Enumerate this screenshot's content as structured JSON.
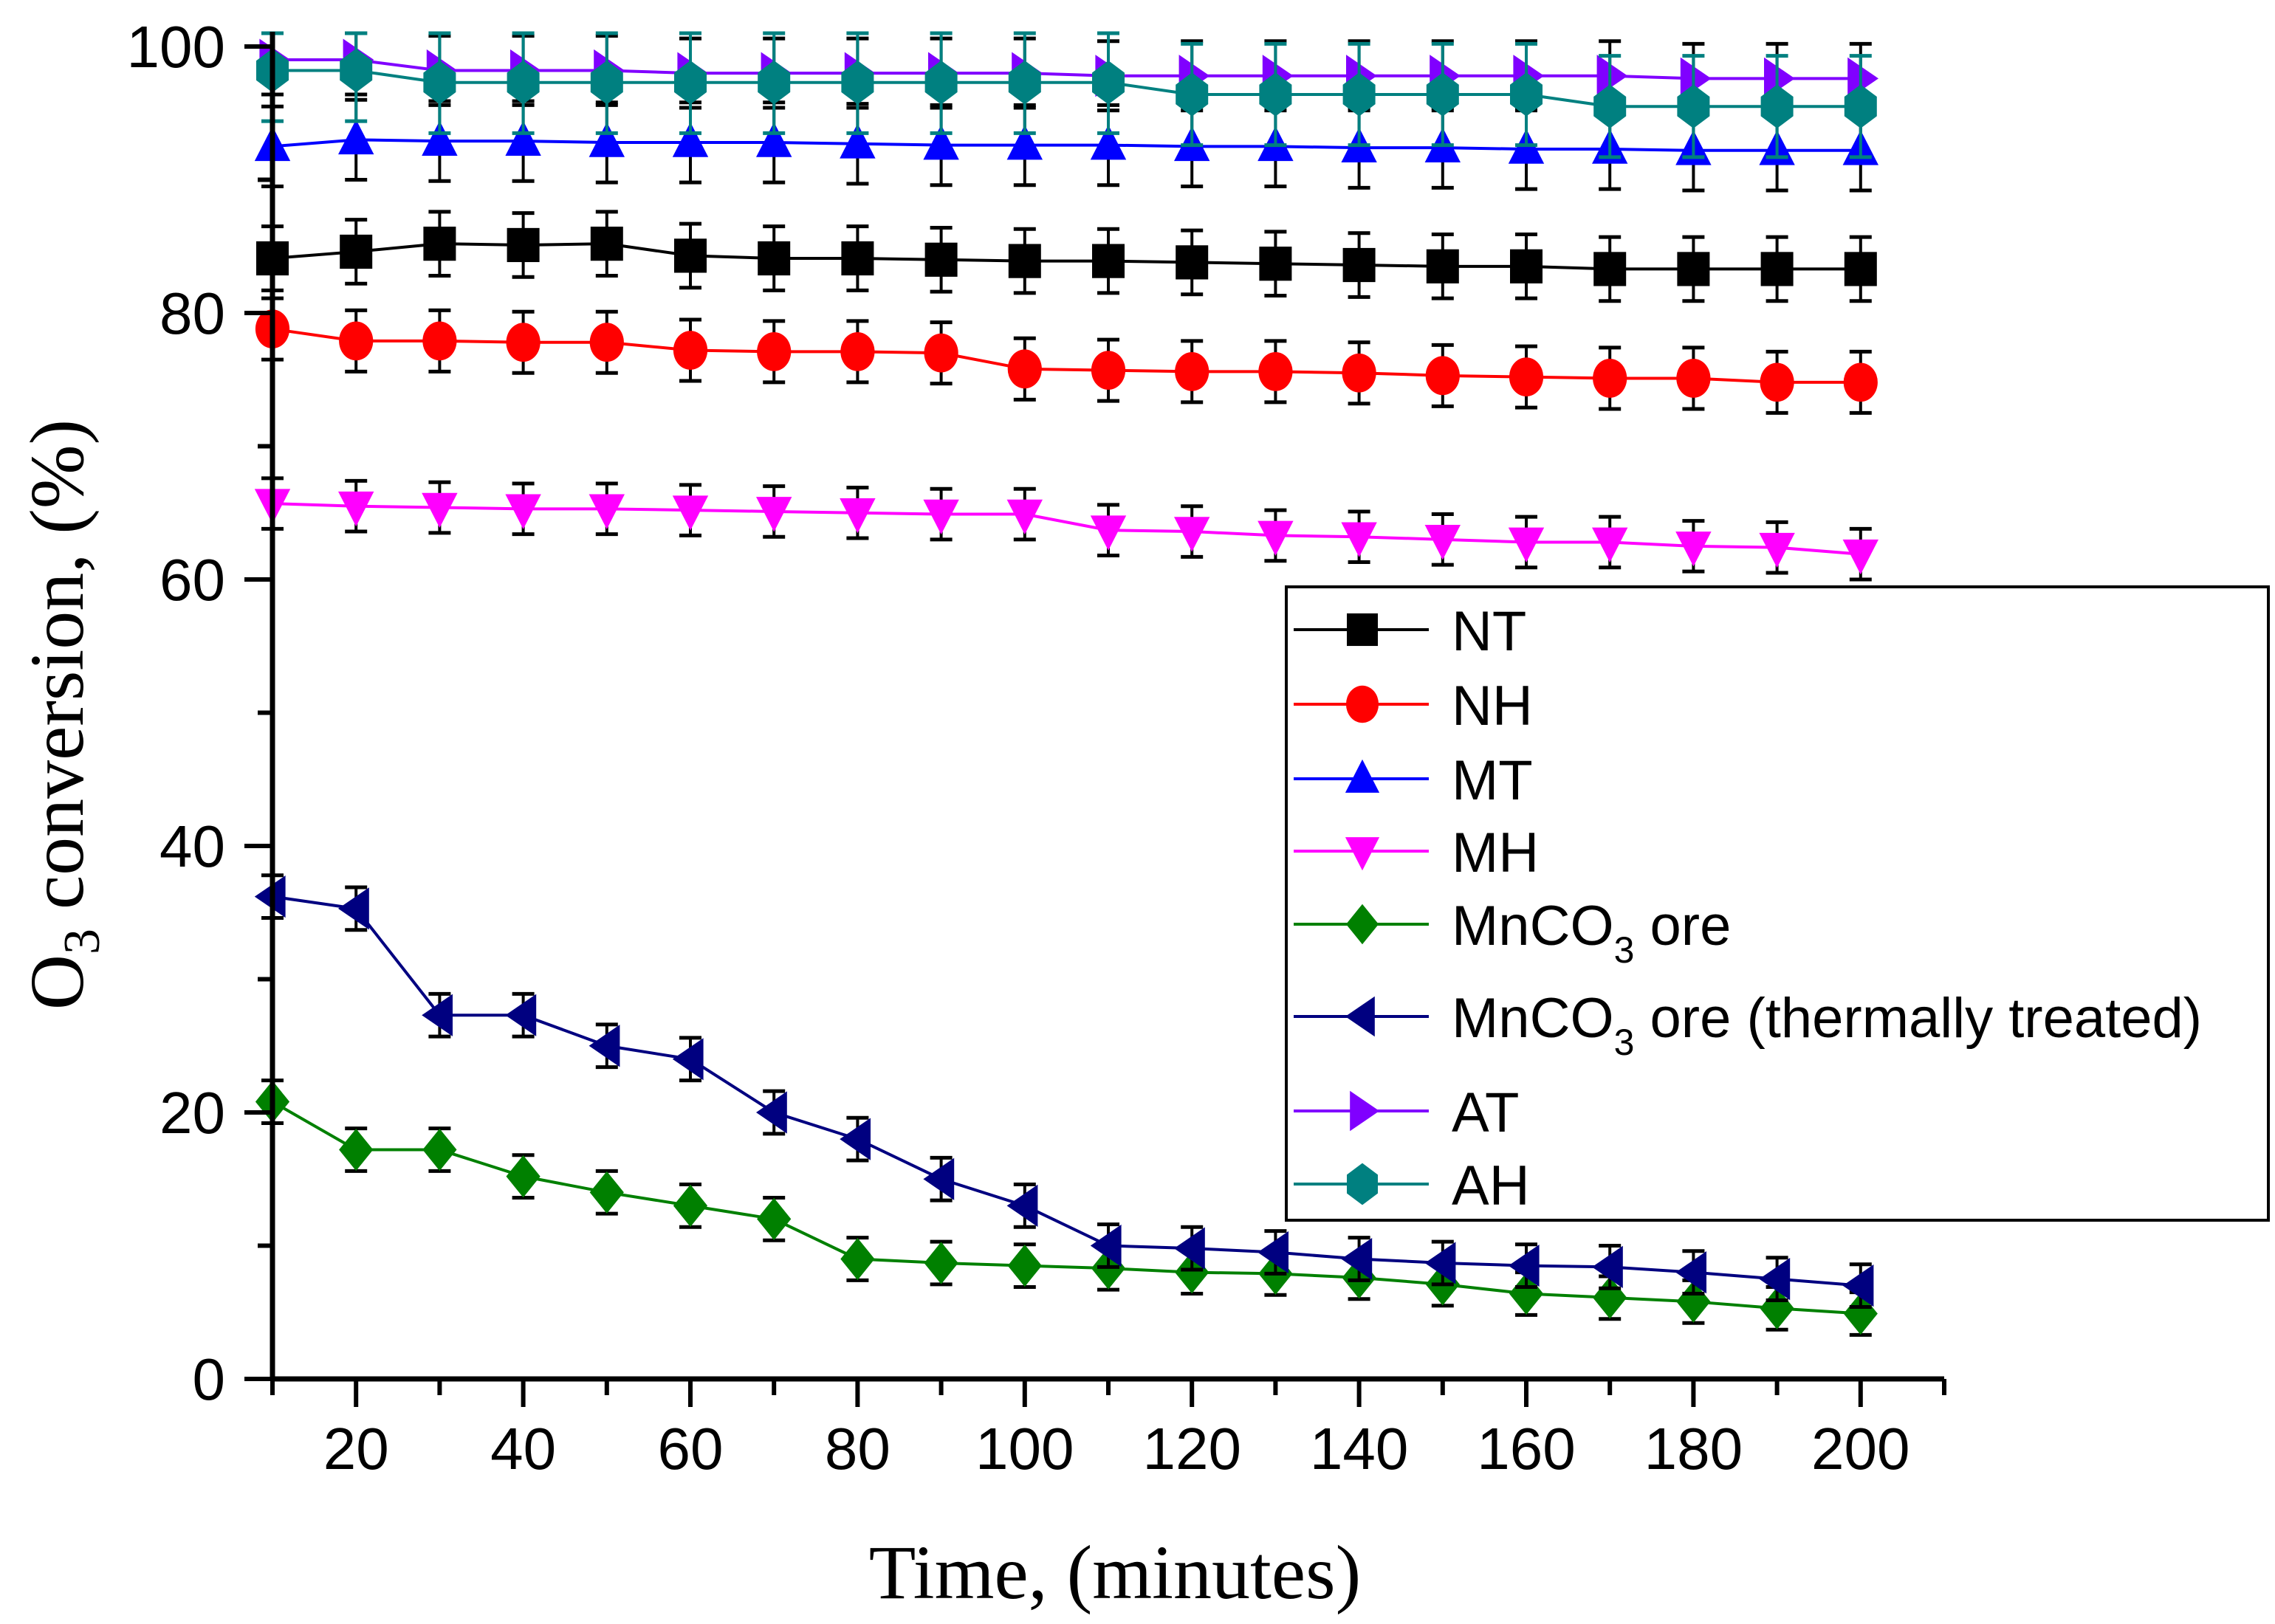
{
  "chart_data": {
    "type": "line",
    "title": "",
    "xlabel": "Time, (minutes)",
    "ylabel_main": "O",
    "ylabel_sub": "3",
    "ylabel_rest": " conversion, (%)",
    "xlim": [
      10,
      210
    ],
    "ylim": [
      0,
      100
    ],
    "xticks": [
      20,
      40,
      60,
      80,
      100,
      120,
      140,
      160,
      180,
      200
    ],
    "yticks": [
      0,
      20,
      40,
      60,
      80,
      100
    ],
    "grid": false,
    "legend_position": "center-right",
    "x": [
      10,
      20,
      30,
      40,
      50,
      60,
      70,
      80,
      90,
      100,
      110,
      120,
      130,
      140,
      150,
      160,
      170,
      180,
      190,
      200
    ],
    "series": [
      {
        "name": "NT",
        "label_main": "NT",
        "label_sub": "",
        "label_rest": "",
        "color": "#000000",
        "marker": "square",
        "error": 2.4,
        "error_color": "#000000",
        "values": [
          84.1,
          84.6,
          85.2,
          85.1,
          85.2,
          84.3,
          84.1,
          84.1,
          84.0,
          83.9,
          83.9,
          83.8,
          83.7,
          83.6,
          83.5,
          83.5,
          83.3,
          83.3,
          83.3,
          83.3
        ]
      },
      {
        "name": "NH",
        "label_main": "NH",
        "label_sub": "",
        "label_rest": "",
        "color": "#ff0000",
        "marker": "circle",
        "error": 2.3,
        "error_color": "#000000",
        "values": [
          78.8,
          77.9,
          77.9,
          77.8,
          77.8,
          77.2,
          77.1,
          77.1,
          77.0,
          75.8,
          75.7,
          75.6,
          75.6,
          75.5,
          75.3,
          75.2,
          75.1,
          75.1,
          74.8,
          74.8
        ]
      },
      {
        "name": "MT",
        "label_main": "MT",
        "label_sub": "",
        "label_rest": "",
        "color": "#0000ff",
        "marker": "triangle-up",
        "error": 3.0,
        "error_color": "#000000",
        "values": [
          92.5,
          93.0,
          92.9,
          92.9,
          92.8,
          92.8,
          92.8,
          92.7,
          92.6,
          92.6,
          92.6,
          92.5,
          92.5,
          92.4,
          92.4,
          92.3,
          92.3,
          92.2,
          92.2,
          92.2
        ]
      },
      {
        "name": "MH",
        "label_main": "MH",
        "label_sub": "",
        "label_rest": "",
        "color": "#ff00ff",
        "marker": "triangle-down",
        "error": 1.9,
        "error_color": "#000000",
        "values": [
          65.7,
          65.5,
          65.4,
          65.3,
          65.3,
          65.2,
          65.1,
          65.0,
          64.9,
          64.9,
          63.7,
          63.6,
          63.3,
          63.2,
          63.0,
          62.8,
          62.8,
          62.5,
          62.4,
          61.9
        ]
      },
      {
        "name": "MnCO3 ore",
        "label_main": "MnCO",
        "label_sub": "3",
        "label_rest": " ore",
        "color": "#008000",
        "marker": "diamond",
        "error": 1.6,
        "error_color": "#000000",
        "values": [
          20.8,
          17.2,
          17.2,
          15.2,
          14.0,
          13.0,
          12.0,
          9.0,
          8.7,
          8.5,
          8.3,
          8.0,
          7.9,
          7.6,
          7.1,
          6.4,
          6.1,
          5.8,
          5.3,
          4.9
        ]
      },
      {
        "name": "MnCO3 ore (thermally treated)",
        "label_main": "MnCO",
        "label_sub": "3",
        "label_rest": " ore (thermally treated)",
        "color": "#000080",
        "marker": "triangle-left",
        "error": 1.6,
        "error_color": "#000000",
        "values": [
          36.2,
          35.3,
          27.3,
          27.3,
          25.0,
          24.0,
          20.0,
          18.0,
          15.0,
          13.0,
          10.0,
          9.8,
          9.5,
          9.0,
          8.7,
          8.5,
          8.4,
          8.0,
          7.5,
          7.0
        ]
      },
      {
        "name": "AT",
        "label_main": "AT",
        "label_sub": "",
        "label_rest": "",
        "color": "#8000ff",
        "marker": "triangle-right",
        "error": 2.6,
        "error_color": "#000000",
        "values": [
          99.0,
          99.0,
          98.2,
          98.2,
          98.2,
          98.0,
          98.0,
          98.0,
          98.0,
          98.0,
          97.8,
          97.8,
          97.8,
          97.8,
          97.8,
          97.8,
          97.8,
          97.6,
          97.6,
          97.6
        ]
      },
      {
        "name": "AH",
        "label_main": "AH",
        "label_sub": "",
        "label_rest": "",
        "color": "#008080",
        "marker": "hexagon",
        "error": 3.8,
        "error_color": "#008080",
        "values": [
          98.2,
          98.2,
          97.3,
          97.3,
          97.3,
          97.3,
          97.3,
          97.3,
          97.3,
          97.3,
          97.3,
          96.4,
          96.4,
          96.4,
          96.4,
          96.4,
          95.5,
          95.5,
          95.5,
          95.5
        ]
      }
    ]
  }
}
